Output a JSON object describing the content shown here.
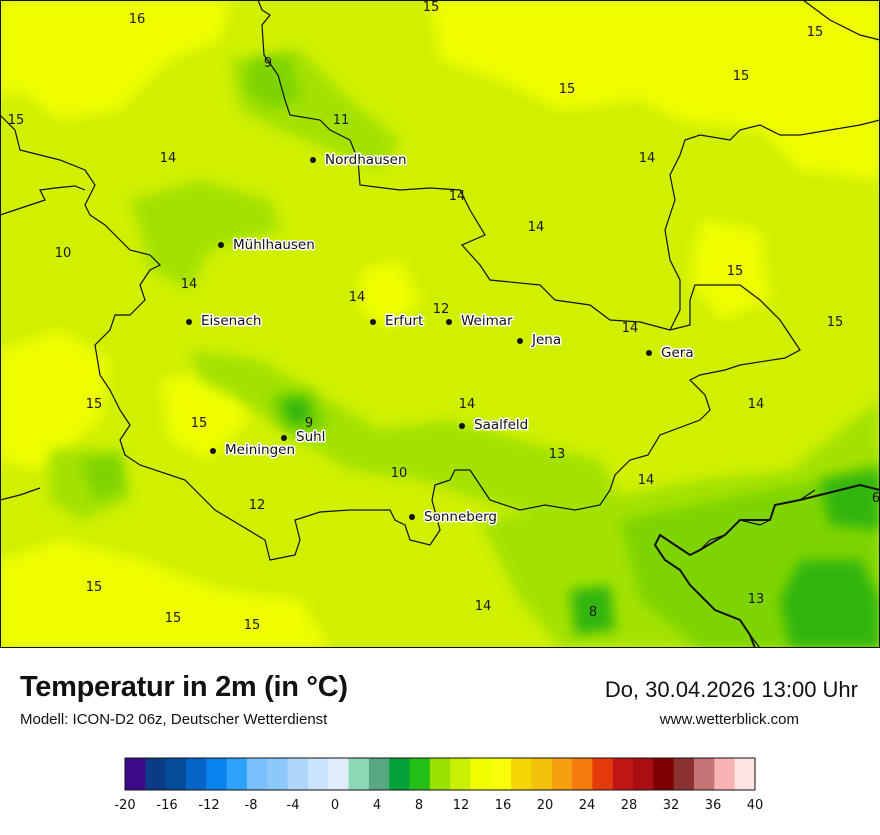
{
  "header": {
    "title": "Temperatur in 2m (in °C)",
    "model": "Modell: ICON-D2 06z, Deutscher Wetterdienst",
    "datetime": "Do, 30.04.2026 13:00 Uhr",
    "website": "www.wetterblick.com"
  },
  "colors": {
    "base_field": "#d0f000",
    "warm_field": "#eefe00",
    "cool_field": "#a3e200",
    "cold_field": "#7ed400",
    "coldest_field": "#30b60a",
    "border": "#111111"
  },
  "cities": [
    {
      "name": "Nordhausen"
    },
    {
      "name": "Mühlhausen"
    },
    {
      "name": "Eisenach"
    },
    {
      "name": "Erfurt"
    },
    {
      "name": "Weimar"
    },
    {
      "name": "Jena"
    },
    {
      "name": "Gera"
    },
    {
      "name": "Suhl"
    },
    {
      "name": "Meiningen"
    },
    {
      "name": "Saalfeld"
    },
    {
      "name": "Sonneberg"
    }
  ],
  "temperature_labels": [
    "16",
    "15",
    "15",
    "15",
    "15",
    "15",
    "9",
    "11",
    "14",
    "14",
    "14",
    "14",
    "10",
    "14",
    "15",
    "14",
    "15",
    "12",
    "14",
    "15",
    "14",
    "14",
    "15",
    "15",
    "9",
    "12",
    "10",
    "13",
    "14",
    "6",
    "15",
    "15",
    "15",
    "12",
    "14",
    "8",
    "13"
  ],
  "legend": {
    "ticks": [
      "-20",
      "-16",
      "-12",
      "-8",
      "-4",
      "0",
      "4",
      "8",
      "12",
      "16",
      "20",
      "24",
      "28",
      "32",
      "36",
      "40"
    ],
    "colors": [
      "#3d0a8a",
      "#0b3b86",
      "#034c9a",
      "#0465c6",
      "#0a83ee",
      "#2ea3fb",
      "#7cbffd",
      "#8dc8fb",
      "#aed6fb",
      "#cbe4fd",
      "#e1edfb",
      "#8dd9b7",
      "#56a882",
      "#05a038",
      "#24c016",
      "#98e000",
      "#c8f000",
      "#eefe00",
      "#f7fe08",
      "#f4d704",
      "#f4c20b",
      "#f5a00e",
      "#f37a0c",
      "#e53a0a",
      "#c21515",
      "#a90e12",
      "#7e0000",
      "#8c3131",
      "#c37474",
      "#f8b4b4",
      "#ffe4e4"
    ]
  }
}
